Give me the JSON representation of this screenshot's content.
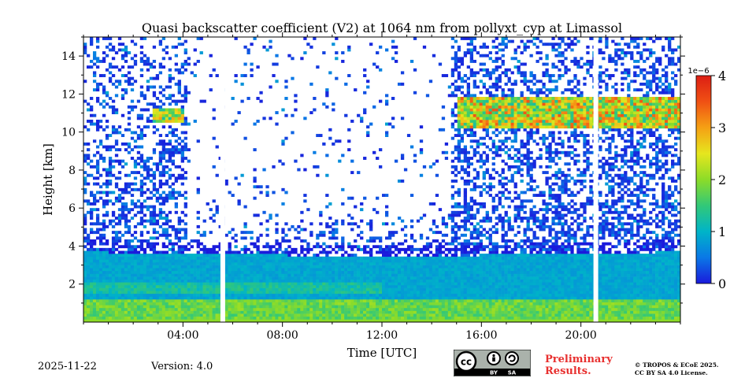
{
  "chart_data": {
    "type": "heatmap",
    "title": "Quasi backscatter coefficient (V2) at 1064 nm from pollyxt_cyp at Limassol",
    "xlabel": "Time [UTC]",
    "ylabel": "Height [km]",
    "xlim_hours": [
      0,
      24
    ],
    "ylim_km": [
      0,
      15
    ],
    "x_ticks": [
      {
        "hour": 4,
        "label": "04:00"
      },
      {
        "hour": 8,
        "label": "08:00"
      },
      {
        "hour": 12,
        "label": "12:00"
      },
      {
        "hour": 16,
        "label": "16:00"
      },
      {
        "hour": 20,
        "label": "20:00"
      }
    ],
    "y_ticks": [
      {
        "value": 2,
        "label": "2"
      },
      {
        "value": 4,
        "label": "4"
      },
      {
        "value": 6,
        "label": "6"
      },
      {
        "value": 8,
        "label": "8"
      },
      {
        "value": 10,
        "label": "10"
      },
      {
        "value": 12,
        "label": "12"
      },
      {
        "value": 14,
        "label": "14"
      }
    ],
    "colorbar": {
      "range": [
        0,
        4
      ],
      "scale_label": "1e−6",
      "ticks": [
        {
          "value": 0,
          "label": "0"
        },
        {
          "value": 1,
          "label": "1"
        },
        {
          "value": 2,
          "label": "2"
        },
        {
          "value": 3,
          "label": "3"
        },
        {
          "value": 4,
          "label": "4"
        }
      ],
      "colors": [
        "#1a1adc",
        "#0a78e6",
        "#00b4c8",
        "#32c878",
        "#8cdc28",
        "#e6e61e",
        "#f5a014",
        "#f05014",
        "#dc1e14"
      ]
    },
    "data_gaps_hours": [
      5.6,
      20.6
    ],
    "features": [
      {
        "name": "boundary layer",
        "height_km": [
          0,
          3.7
        ],
        "time_hours": [
          0,
          24
        ],
        "level": 0.9
      },
      {
        "name": "near-surface layer",
        "height_km": [
          0,
          1.2
        ],
        "time_hours": [
          0,
          24
        ],
        "level": 1.8
      },
      {
        "name": "cirrus cloud",
        "height_km": [
          10.2,
          11.8
        ],
        "time_hours": [
          15,
          24
        ],
        "level": 2.5
      },
      {
        "name": "cirrus cloud",
        "height_km": [
          10.5,
          11.3
        ],
        "time_hours": [
          2.8,
          4.0
        ],
        "level": 2.2
      }
    ]
  },
  "footer": {
    "date": "2025-11-22",
    "version": "Version: 4.0",
    "preliminary": "Preliminary Results.",
    "copyright_line1": "© TROPOS & ECoE 2025.",
    "copyright_line2": "CC BY SA 4.0 License.",
    "license_badge": {
      "cc": "cc",
      "by": "BY",
      "sa": "SA"
    }
  }
}
